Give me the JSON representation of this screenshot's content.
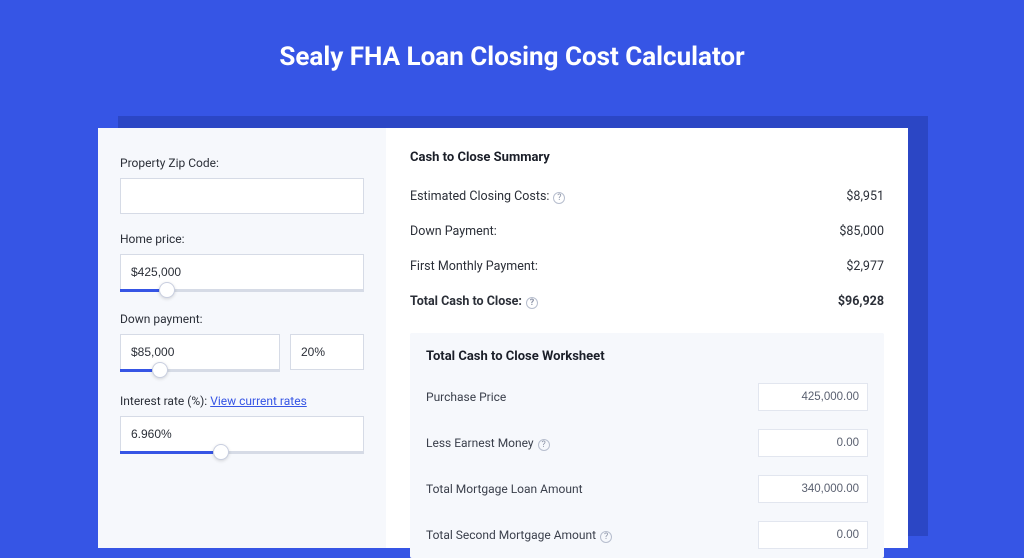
{
  "colors": {
    "page_bg": "#3655e5",
    "shadow": "#2b46c5",
    "card_bg": "#ffffff",
    "panel_bg": "#f6f8fc",
    "border": "#d6dbe6",
    "text": "#2b2f38",
    "link": "#3655e5",
    "muted": "#8a92a6"
  },
  "title": "Sealy FHA Loan Closing Cost Calculator",
  "inputs": {
    "zip": {
      "label": "Property Zip Code:",
      "value": ""
    },
    "home_price": {
      "label": "Home price:",
      "value": "$425,000",
      "slider_pct": 16
    },
    "down_payment": {
      "label": "Down payment:",
      "value": "$85,000",
      "pct_value": "20%",
      "slider_pct": 20
    },
    "interest_rate": {
      "label_prefix": "Interest rate (%): ",
      "link_text": "View current rates",
      "value": "6.960%",
      "slider_pct": 38
    }
  },
  "summary": {
    "title": "Cash to Close Summary",
    "rows": [
      {
        "label": "Estimated Closing Costs:",
        "help": true,
        "value": "$8,951",
        "bold": false
      },
      {
        "label": "Down Payment:",
        "help": false,
        "value": "$85,000",
        "bold": false
      },
      {
        "label": "First Monthly Payment:",
        "help": false,
        "value": "$2,977",
        "bold": false
      },
      {
        "label": "Total Cash to Close:",
        "help": true,
        "value": "$96,928",
        "bold": true
      }
    ]
  },
  "worksheet": {
    "title": "Total Cash to Close Worksheet",
    "rows": [
      {
        "label": "Purchase Price",
        "help": false,
        "value": "425,000.00"
      },
      {
        "label": "Less Earnest Money",
        "help": true,
        "value": "0.00"
      },
      {
        "label": "Total Mortgage Loan Amount",
        "help": false,
        "value": "340,000.00"
      },
      {
        "label": "Total Second Mortgage Amount",
        "help": true,
        "value": "0.00"
      }
    ]
  }
}
